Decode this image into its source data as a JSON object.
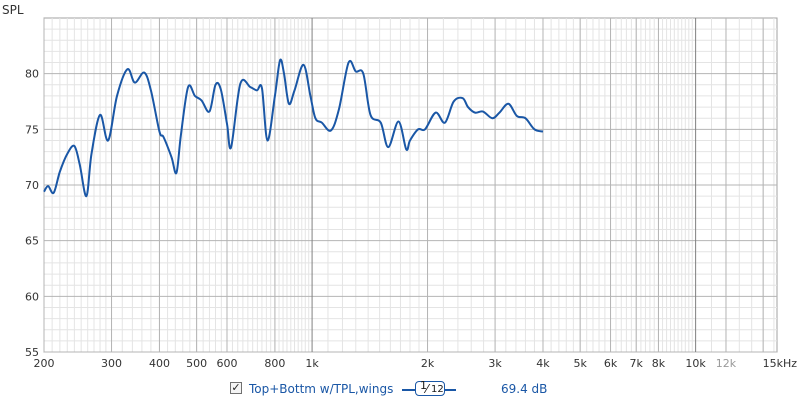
{
  "chart_data": {
    "type": "line",
    "x_scale": "log",
    "xlim": [
      200,
      16300
    ],
    "ylim": [
      55,
      85
    ],
    "ylabel": "SPL",
    "y_ticks": [
      55,
      60,
      65,
      70,
      75,
      80
    ],
    "y_tick_labels": [
      "55",
      "60",
      "65",
      "70",
      "75",
      "80"
    ],
    "x_ticks": [
      200,
      300,
      400,
      500,
      600,
      800,
      1000,
      2000,
      3000,
      4000,
      5000,
      6000,
      7000,
      8000,
      10000,
      12000,
      15000
    ],
    "x_tick_labels": [
      "200",
      "300",
      "400",
      "500",
      "600",
      "800",
      "1k",
      "2k",
      "3k",
      "4k",
      "5k",
      "6k",
      "7k",
      "8k",
      "10k",
      "12k",
      "15kHz"
    ],
    "grid": true,
    "series": [
      {
        "name": "Top+Bottm w/TPL,wings",
        "color": "#1a57a6",
        "x": [
          200,
          205,
          212,
          220,
          230,
          240,
          248,
          258,
          266,
          280,
          294,
          310,
          330,
          345,
          365,
          380,
          400,
          410,
          430,
          443,
          455,
          475,
          495,
          515,
          540,
          560,
          578,
          600,
          615,
          650,
          690,
          718,
          740,
          765,
          800,
          825,
          845,
          870,
          900,
          950,
          990,
          1020,
          1060,
          1120,
          1175,
          1245,
          1300,
          1360,
          1420,
          1510,
          1580,
          1680,
          1760,
          1800,
          1890,
          1970,
          2100,
          2220,
          2340,
          2470,
          2550,
          2660,
          2790,
          2950,
          3080,
          3250,
          3420,
          3600,
          3800,
          4000
        ],
        "y": [
          69.4,
          69.9,
          69.3,
          71.2,
          72.8,
          73.5,
          71.8,
          69.0,
          72.8,
          76.3,
          74.0,
          78.0,
          80.4,
          79.2,
          80.1,
          78.5,
          74.8,
          74.3,
          72.5,
          71.1,
          74.5,
          78.8,
          78.0,
          77.6,
          76.6,
          79.0,
          78.6,
          75.5,
          73.4,
          79.1,
          78.8,
          78.5,
          78.7,
          74.0,
          78.0,
          81.2,
          80.0,
          77.3,
          78.5,
          80.8,
          78.0,
          76.0,
          75.6,
          74.9,
          76.8,
          81.0,
          80.2,
          80.0,
          76.3,
          75.6,
          73.4,
          75.7,
          73.2,
          74.0,
          75.0,
          75.0,
          76.5,
          75.6,
          77.5,
          77.8,
          77.0,
          76.5,
          76.6,
          76.0,
          76.5,
          77.3,
          76.2,
          76.0,
          75.0,
          74.8
        ]
      }
    ],
    "smoothing": {
      "numerator": "1",
      "denominator": "12"
    },
    "legend": {
      "checked_mark": "✓",
      "label": "Top+Bottm w/TPL,wings",
      "value": "69.4 dB",
      "position": "bottom"
    }
  }
}
